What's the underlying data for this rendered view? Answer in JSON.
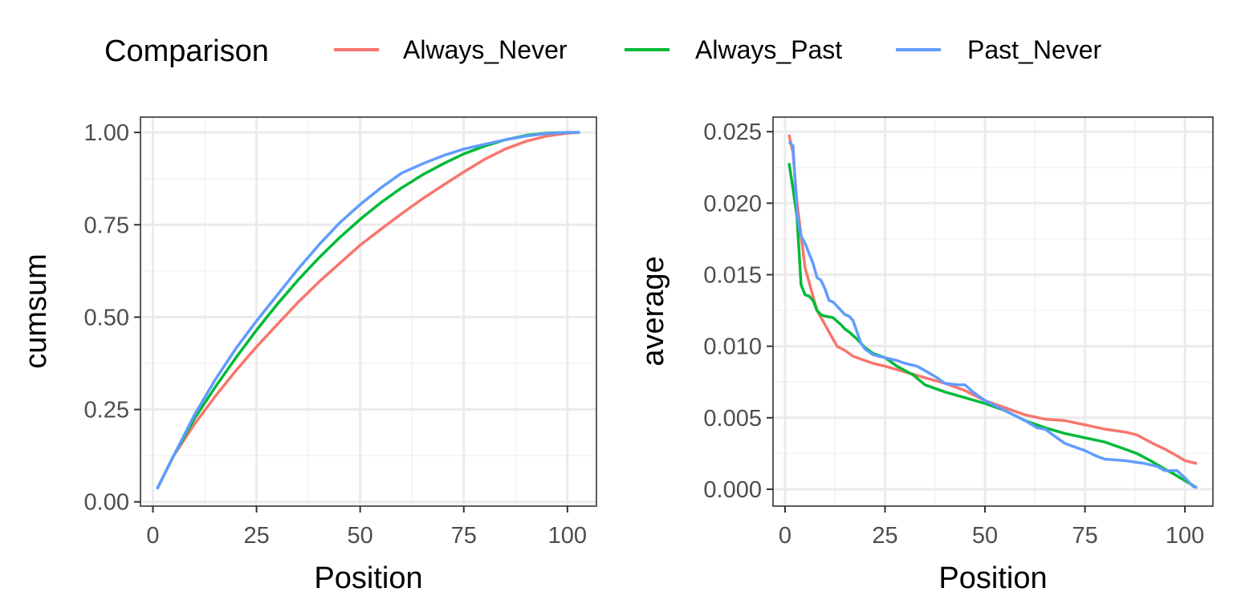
{
  "legend": {
    "title": "Comparison",
    "position": "top",
    "items": [
      {
        "label": "Always_Never",
        "color": "#F8766D"
      },
      {
        "label": "Always_Past",
        "color": "#00BA38"
      },
      {
        "label": "Past_Never",
        "color": "#619CFF"
      }
    ]
  },
  "chart_data": [
    {
      "type": "line",
      "xlabel": "Position",
      "ylabel": "cumsum",
      "xlim": [
        -3,
        107
      ],
      "ylim": [
        -0.0115,
        1.0415
      ],
      "xticks": [
        {
          "value": 0,
          "label": "0"
        },
        {
          "value": 25,
          "label": "25"
        },
        {
          "value": 50,
          "label": "50"
        },
        {
          "value": 75,
          "label": "75"
        },
        {
          "value": 100,
          "label": "100"
        }
      ],
      "yticks": [
        {
          "value": 0,
          "label": "0.00"
        },
        {
          "value": 0.25,
          "label": "0.25"
        },
        {
          "value": 0.5,
          "label": "0.50"
        },
        {
          "value": 0.75,
          "label": "0.75"
        },
        {
          "value": 1,
          "label": "1.00"
        }
      ],
      "grid": true,
      "series": [
        {
          "name": "Always_Never",
          "color": "#F8766D",
          "x": [
            1,
            5,
            10,
            15,
            20,
            25,
            30,
            35,
            40,
            45,
            50,
            55,
            60,
            65,
            70,
            75,
            80,
            85,
            90,
            95,
            100,
            103
          ],
          "y": [
            0.035,
            0.125,
            0.21,
            0.285,
            0.355,
            0.42,
            0.48,
            0.54,
            0.595,
            0.645,
            0.695,
            0.738,
            0.78,
            0.82,
            0.857,
            0.893,
            0.927,
            0.955,
            0.976,
            0.99,
            0.998,
            1.0
          ]
        },
        {
          "name": "Always_Past",
          "color": "#00BA38",
          "x": [
            1,
            5,
            10,
            15,
            20,
            25,
            30,
            35,
            40,
            45,
            50,
            55,
            60,
            65,
            70,
            75,
            80,
            85,
            90,
            95,
            100,
            103
          ],
          "y": [
            0.035,
            0.125,
            0.225,
            0.31,
            0.39,
            0.465,
            0.535,
            0.6,
            0.66,
            0.715,
            0.765,
            0.81,
            0.85,
            0.885,
            0.915,
            0.942,
            0.963,
            0.98,
            0.992,
            0.998,
            1.0,
            1.0
          ]
        },
        {
          "name": "Past_Never",
          "color": "#619CFF",
          "x": [
            1,
            5,
            10,
            15,
            20,
            25,
            30,
            35,
            40,
            45,
            50,
            55,
            60,
            65,
            70,
            75,
            80,
            85,
            90,
            95,
            100,
            103
          ],
          "y": [
            0.035,
            0.125,
            0.235,
            0.33,
            0.415,
            0.49,
            0.56,
            0.63,
            0.695,
            0.755,
            0.805,
            0.85,
            0.89,
            0.915,
            0.937,
            0.955,
            0.968,
            0.98,
            0.99,
            0.997,
            1.0,
            1.0
          ]
        }
      ]
    },
    {
      "type": "line",
      "xlabel": "Position",
      "ylabel": "average",
      "xlim": [
        -3,
        107
      ],
      "ylim": [
        -0.00118,
        0.02602
      ],
      "xticks": [
        {
          "value": 0,
          "label": "0"
        },
        {
          "value": 25,
          "label": "25"
        },
        {
          "value": 50,
          "label": "50"
        },
        {
          "value": 75,
          "label": "75"
        },
        {
          "value": 100,
          "label": "100"
        }
      ],
      "yticks": [
        {
          "value": 0,
          "label": "0.000"
        },
        {
          "value": 0.005,
          "label": "0.005"
        },
        {
          "value": 0.01,
          "label": "0.010"
        },
        {
          "value": 0.015,
          "label": "0.015"
        },
        {
          "value": 0.02,
          "label": "0.020"
        },
        {
          "value": 0.025,
          "label": "0.025"
        }
      ],
      "grid": true,
      "series": [
        {
          "name": "Always_Never",
          "color": "#F8766D",
          "x": [
            1,
            2,
            3,
            4,
            5,
            6,
            7,
            8,
            9,
            10,
            11,
            12,
            13,
            15,
            17,
            20,
            22,
            25,
            30,
            35,
            40,
            45,
            50,
            55,
            60,
            65,
            70,
            75,
            80,
            85,
            88,
            90,
            92,
            95,
            97,
            100,
            103
          ],
          "y": [
            0.0248,
            0.0235,
            0.02,
            0.0178,
            0.0155,
            0.0145,
            0.0135,
            0.0125,
            0.012,
            0.0115,
            0.011,
            0.0105,
            0.01,
            0.0097,
            0.0093,
            0.009,
            0.0088,
            0.0086,
            0.0082,
            0.0078,
            0.0074,
            0.0069,
            0.0062,
            0.0057,
            0.0052,
            0.0049,
            0.0048,
            0.0045,
            0.0042,
            0.004,
            0.0038,
            0.0035,
            0.0032,
            0.0028,
            0.0025,
            0.002,
            0.0018
          ]
        },
        {
          "name": "Always_Past",
          "color": "#00BA38",
          "x": [
            1,
            2,
            3,
            4,
            5,
            6,
            7,
            8,
            9,
            10,
            12,
            14,
            15,
            16,
            18,
            20,
            22,
            25,
            28,
            30,
            32,
            35,
            40,
            45,
            50,
            55,
            60,
            65,
            70,
            75,
            80,
            85,
            88,
            90,
            92,
            95,
            97,
            100,
            103
          ],
          "y": [
            0.0228,
            0.021,
            0.019,
            0.0143,
            0.0136,
            0.0135,
            0.0132,
            0.0125,
            0.0122,
            0.0121,
            0.012,
            0.0115,
            0.0112,
            0.011,
            0.0105,
            0.0099,
            0.0095,
            0.0092,
            0.0086,
            0.0083,
            0.008,
            0.0073,
            0.0068,
            0.0064,
            0.006,
            0.0055,
            0.0048,
            0.0043,
            0.0039,
            0.0036,
            0.0033,
            0.0028,
            0.0025,
            0.0022,
            0.0019,
            0.0014,
            0.0011,
            0.0006,
            0.0001
          ]
        },
        {
          "name": "Past_Never",
          "color": "#619CFF",
          "x": [
            1,
            2,
            3,
            4,
            5,
            6,
            7,
            8,
            9,
            10,
            11,
            12,
            13,
            14,
            15,
            16,
            17,
            18,
            19,
            20,
            22,
            25,
            28,
            30,
            33,
            35,
            38,
            40,
            43,
            45,
            47,
            50,
            55,
            60,
            63,
            65,
            67,
            70,
            75,
            78,
            80,
            85,
            90,
            93,
            95,
            98,
            100,
            102,
            103
          ],
          "y": [
            0.0243,
            0.024,
            0.0192,
            0.0177,
            0.0172,
            0.0165,
            0.0158,
            0.0148,
            0.0146,
            0.014,
            0.0132,
            0.0131,
            0.0128,
            0.0125,
            0.0122,
            0.0121,
            0.0118,
            0.011,
            0.0102,
            0.0098,
            0.0094,
            0.0092,
            0.009,
            0.0088,
            0.0086,
            0.0083,
            0.0078,
            0.0074,
            0.0073,
            0.0073,
            0.0068,
            0.0062,
            0.0055,
            0.0048,
            0.0043,
            0.0042,
            0.0038,
            0.0032,
            0.0027,
            0.0023,
            0.0021,
            0.002,
            0.0018,
            0.0016,
            0.0013,
            0.0013,
            0.0008,
            0.0002,
            0.0001
          ]
        }
      ]
    }
  ]
}
